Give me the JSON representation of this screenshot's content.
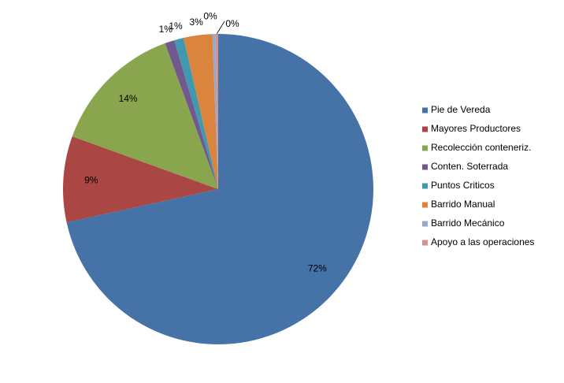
{
  "chart_data": {
    "type": "pie",
    "categories": [
      "Pie de Vereda",
      "Mayores Productores",
      "Recolección conteneriz.",
      "Conten. Soterrada",
      "Puntos Criticos",
      "Barrido Manual",
      "Barrido Mecánico",
      "Apoyo a las operaciones"
    ],
    "values": [
      72,
      9,
      14,
      1,
      1,
      3,
      0.3,
      0.3
    ],
    "value_labels": [
      "72%",
      "9%",
      "14%",
      "1%",
      "1%",
      "3%",
      "0%",
      "0%"
    ],
    "colors": [
      "#4572a7",
      "#aa4643",
      "#89a54e",
      "#71588f",
      "#4198af",
      "#db843d",
      "#93a9cf",
      "#d19392"
    ],
    "legend": "right"
  }
}
